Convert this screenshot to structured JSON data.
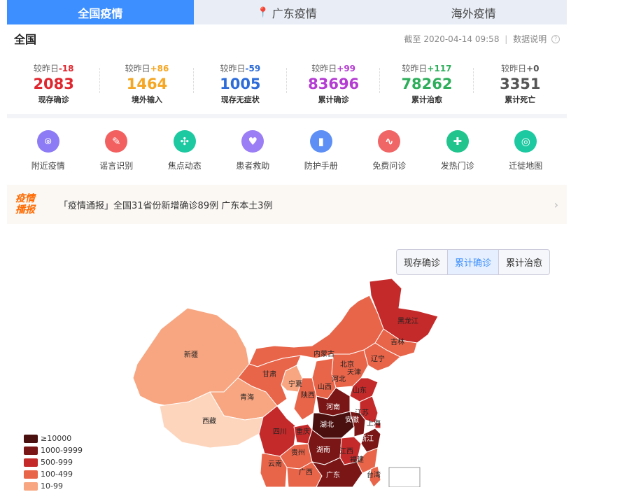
{
  "tabs": [
    {
      "label": "全国疫情",
      "active": true
    },
    {
      "label": "广东疫情",
      "active": false
    },
    {
      "label": "海外疫情",
      "active": false
    }
  ],
  "header": {
    "title": "全国",
    "updated": "截至 2020-04-14 09:58",
    "separator": "|",
    "info": "数据说明"
  },
  "stats": [
    {
      "cmp_label": "较昨日",
      "delta": "-18",
      "value": "2083",
      "label": "现存确诊",
      "color": "#e0262e"
    },
    {
      "cmp_label": "较昨日",
      "delta": "+86",
      "value": "1464",
      "label": "境外输入",
      "color": "#f5a623"
    },
    {
      "cmp_label": "较昨日",
      "delta": "-59",
      "value": "1005",
      "label": "现存无症状",
      "color": "#2d6cd9"
    },
    {
      "cmp_label": "较昨日",
      "delta": "+99",
      "value": "83696",
      "label": "累计确诊",
      "color": "#b43cd3"
    },
    {
      "cmp_label": "较昨日",
      "delta": "+117",
      "value": "78262",
      "label": "累计治愈",
      "color": "#2eae5b"
    },
    {
      "cmp_label": "较昨日",
      "delta": "+0",
      "value": "3351",
      "label": "累计死亡",
      "color": "#555555"
    }
  ],
  "services": [
    {
      "label": "附近疫情",
      "icon": "location-icon",
      "color": "#8d7bf5"
    },
    {
      "label": "谣言识别",
      "icon": "chat-check-icon",
      "color": "#f26060"
    },
    {
      "label": "焦点动态",
      "icon": "compass-icon",
      "color": "#1dc9a0"
    },
    {
      "label": "患者救助",
      "icon": "heart-icon",
      "color": "#9b7ef5"
    },
    {
      "label": "防护手册",
      "icon": "book-icon",
      "color": "#5d8ff5"
    },
    {
      "label": "免费问诊",
      "icon": "calendar-pulse-icon",
      "color": "#f06565"
    },
    {
      "label": "发热门诊",
      "icon": "medkit-icon",
      "color": "#22c48e"
    },
    {
      "label": "迁徙地图",
      "icon": "target-icon",
      "color": "#1dc9a0"
    }
  ],
  "banner": {
    "logo_line1": "疫情",
    "logo_line2": "播报",
    "text": "「疫情通报」全国31省份新增确诊89例 广东本土3例"
  },
  "map_tabs": [
    {
      "label": "现存确诊",
      "active": false
    },
    {
      "label": "累计确诊",
      "active": true
    },
    {
      "label": "累计治愈",
      "active": false
    }
  ],
  "legend": [
    {
      "label": "≥10000",
      "color": "#4a0f0f"
    },
    {
      "label": "1000-9999",
      "color": "#7a1616"
    },
    {
      "label": "500-999",
      "color": "#c52a2a"
    },
    {
      "label": "100-499",
      "color": "#e8654a"
    },
    {
      "label": "10-99",
      "color": "#f7a681"
    }
  ],
  "provinces": [
    {
      "name": "黑龙江",
      "color": "#c52a2a"
    },
    {
      "name": "吉林",
      "color": "#e8654a"
    },
    {
      "name": "辽宁",
      "color": "#e8654a"
    },
    {
      "name": "内蒙古",
      "color": "#e8654a"
    },
    {
      "name": "北京",
      "color": "#c52a2a"
    },
    {
      "name": "天津",
      "color": "#e8654a"
    },
    {
      "name": "河北",
      "color": "#e8654a"
    },
    {
      "name": "山西",
      "color": "#e8654a"
    },
    {
      "name": "新疆",
      "color": "#f7a681"
    },
    {
      "name": "甘肃",
      "color": "#e8654a"
    },
    {
      "name": "宁夏",
      "color": "#f7a681"
    },
    {
      "name": "陕西",
      "color": "#e8654a"
    },
    {
      "name": "青海",
      "color": "#f7a681"
    },
    {
      "name": "西藏",
      "color": "#fdd5bd"
    },
    {
      "name": "山东",
      "color": "#c52a2a"
    },
    {
      "name": "河南",
      "color": "#7a1616"
    },
    {
      "name": "湖北",
      "color": "#4a0f0f"
    },
    {
      "name": "江苏",
      "color": "#c52a2a"
    },
    {
      "name": "安徽",
      "color": "#7a1616"
    },
    {
      "name": "上海",
      "color": "#c52a2a"
    },
    {
      "name": "浙江",
      "color": "#7a1616"
    },
    {
      "name": "四川",
      "color": "#c52a2a"
    },
    {
      "name": "重庆",
      "color": "#c52a2a"
    },
    {
      "name": "湖南",
      "color": "#7a1616"
    },
    {
      "name": "江西",
      "color": "#c52a2a"
    },
    {
      "name": "福建",
      "color": "#e8654a"
    },
    {
      "name": "贵州",
      "color": "#e8654a"
    },
    {
      "name": "云南",
      "color": "#e8654a"
    },
    {
      "name": "广西",
      "color": "#e8654a"
    },
    {
      "name": "广东",
      "color": "#7a1616"
    },
    {
      "name": "台湾",
      "color": "#e8654a"
    }
  ]
}
